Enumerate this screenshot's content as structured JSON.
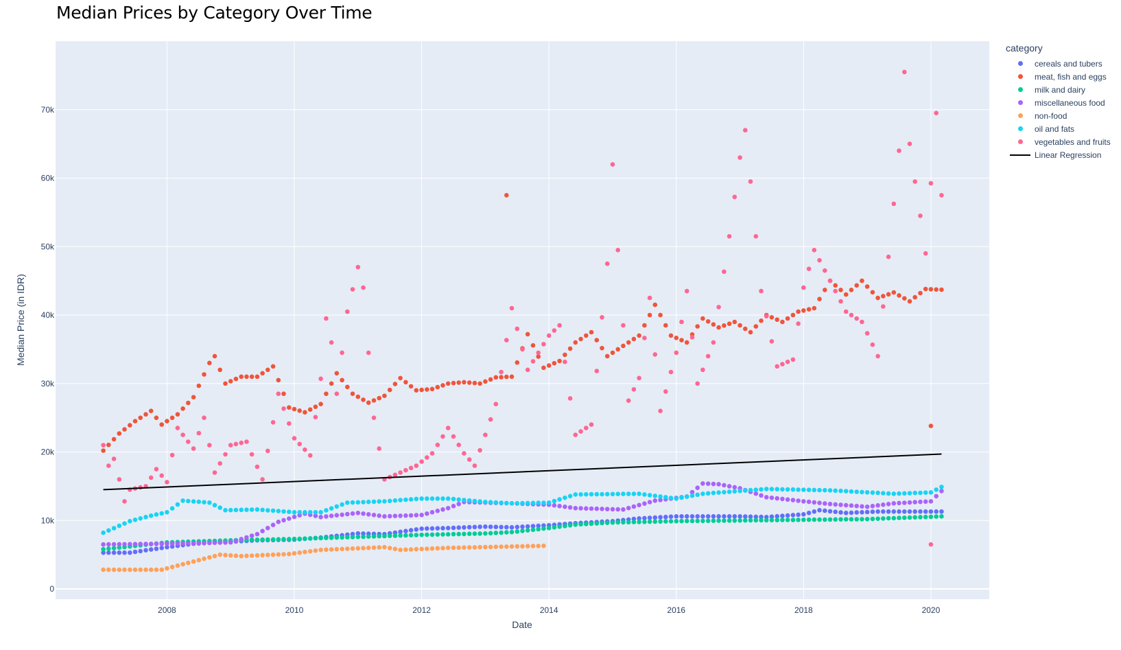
{
  "chart_data": {
    "type": "scatter",
    "title": "Median Prices by Category Over Time",
    "xlabel": "Date",
    "ylabel": "Median Price (in IDR)",
    "legend_title": "category",
    "legend_position": "right",
    "grid": true,
    "xlim": [
      "2006-04-01",
      "2020-12-01"
    ],
    "ylim": [
      -1500,
      80000
    ],
    "x_ticks": [
      {
        "value": "2008-01-01",
        "label": "2008"
      },
      {
        "value": "2010-01-01",
        "label": "2010"
      },
      {
        "value": "2012-01-01",
        "label": "2012"
      },
      {
        "value": "2014-01-01",
        "label": "2014"
      },
      {
        "value": "2016-01-01",
        "label": "2016"
      },
      {
        "value": "2018-01-01",
        "label": "2018"
      },
      {
        "value": "2020-01-01",
        "label": "2020"
      }
    ],
    "y_ticks": [
      {
        "value": 0,
        "label": "0"
      },
      {
        "value": 10000,
        "label": "10k"
      },
      {
        "value": 20000,
        "label": "20k"
      },
      {
        "value": 30000,
        "label": "30k"
      },
      {
        "value": 40000,
        "label": "40k"
      },
      {
        "value": 50000,
        "label": "50k"
      },
      {
        "value": 60000,
        "label": "60k"
      },
      {
        "value": 70000,
        "label": "70k"
      }
    ],
    "series": [
      {
        "name": "cereals and tubers",
        "color": "#636efa",
        "start": "2007-01",
        "end": "2020-03",
        "knots": [
          [
            "2007-01",
            5300
          ],
          [
            "2007-06",
            5300
          ],
          [
            "2008-01",
            6100
          ],
          [
            "2008-06",
            6600
          ],
          [
            "2009-01",
            6900
          ],
          [
            "2009-06",
            7100
          ],
          [
            "2010-01",
            7200
          ],
          [
            "2010-06",
            7500
          ],
          [
            "2011-01",
            8100
          ],
          [
            "2011-06",
            8000
          ],
          [
            "2012-01",
            8800
          ],
          [
            "2012-06",
            8900
          ],
          [
            "2013-01",
            9100
          ],
          [
            "2013-06",
            9000
          ],
          [
            "2014-01",
            9300
          ],
          [
            "2014-06",
            9600
          ],
          [
            "2015-01",
            9900
          ],
          [
            "2015-06",
            10300
          ],
          [
            "2016-01",
            10600
          ],
          [
            "2016-06",
            10600
          ],
          [
            "2017-01",
            10600
          ],
          [
            "2017-06",
            10500
          ],
          [
            "2018-01",
            10900
          ],
          [
            "2018-04",
            11500
          ],
          [
            "2018-09",
            11100
          ],
          [
            "2019-03",
            11300
          ],
          [
            "2020-03",
            11300
          ]
        ]
      },
      {
        "name": "meat, fish and eggs",
        "color": "#ef553b",
        "start": "2007-01",
        "end": "2020-03",
        "knots": [
          [
            "2007-01",
            20200
          ],
          [
            "2007-04",
            22700
          ],
          [
            "2007-07",
            24500
          ],
          [
            "2007-10",
            26000
          ],
          [
            "2007-12",
            24000
          ],
          [
            "2008-03",
            25500
          ],
          [
            "2008-06",
            28000
          ],
          [
            "2008-09",
            33000
          ],
          [
            "2008-10",
            34000
          ],
          [
            "2008-12",
            30000
          ],
          [
            "2009-03",
            31000
          ],
          [
            "2009-06",
            31000
          ],
          [
            "2009-09",
            32500
          ],
          [
            "2009-12",
            26500
          ],
          [
            "2010-03",
            25800
          ],
          [
            "2010-06",
            27000
          ],
          [
            "2010-09",
            31500
          ],
          [
            "2010-12",
            28500
          ],
          [
            "2011-03",
            27200
          ],
          [
            "2011-06",
            28200
          ],
          [
            "2011-09",
            30800
          ],
          [
            "2011-12",
            29000
          ],
          [
            "2012-03",
            29200
          ],
          [
            "2012-06",
            30000
          ],
          [
            "2012-09",
            30200
          ],
          [
            "2012-12",
            30000
          ],
          [
            "2013-03",
            30900
          ],
          [
            "2013-06",
            31000
          ],
          [
            "2013-09",
            37200
          ],
          [
            "2013-12",
            32300
          ],
          [
            "2014-03",
            33300
          ],
          [
            "2014-06",
            36000
          ],
          [
            "2014-09",
            37500
          ],
          [
            "2014-12",
            34000
          ],
          [
            "2015-03",
            35500
          ],
          [
            "2015-06",
            37000
          ],
          [
            "2015-09",
            41500
          ],
          [
            "2015-12",
            37000
          ],
          [
            "2016-03",
            36000
          ],
          [
            "2016-06",
            39500
          ],
          [
            "2016-09",
            38200
          ],
          [
            "2016-12",
            39000
          ],
          [
            "2017-03",
            37500
          ],
          [
            "2017-06",
            40000
          ],
          [
            "2017-09",
            39000
          ],
          [
            "2017-12",
            40500
          ],
          [
            "2018-03",
            41000
          ],
          [
            "2018-06",
            45000
          ],
          [
            "2018-09",
            43000
          ],
          [
            "2018-12",
            45000
          ],
          [
            "2019-03",
            42500
          ],
          [
            "2019-06",
            43300
          ],
          [
            "2019-09",
            42000
          ],
          [
            "2019-12",
            43800
          ],
          [
            "2020-03",
            43700
          ]
        ],
        "outliers": [
          [
            "2013-05",
            57500
          ],
          [
            "2020-01",
            23800
          ]
        ]
      },
      {
        "name": "milk and dairy",
        "color": "#00cc96",
        "start": "2007-01",
        "end": "2020-03",
        "knots": [
          [
            "2007-01",
            5800
          ],
          [
            "2007-06",
            6200
          ],
          [
            "2008-01",
            6800
          ],
          [
            "2009-01",
            7100
          ],
          [
            "2010-01",
            7300
          ],
          [
            "2011-01",
            7600
          ],
          [
            "2012-01",
            7900
          ],
          [
            "2013-01",
            8100
          ],
          [
            "2013-06",
            8300
          ],
          [
            "2014-01",
            8900
          ],
          [
            "2014-06",
            9400
          ],
          [
            "2015-01",
            9700
          ],
          [
            "2016-01",
            9900
          ],
          [
            "2017-01",
            10000
          ],
          [
            "2018-01",
            10100
          ],
          [
            "2019-01",
            10200
          ],
          [
            "2020-03",
            10600
          ]
        ]
      },
      {
        "name": "miscellaneous food",
        "color": "#ab63fa",
        "start": "2007-01",
        "end": "2020-03",
        "knots": [
          [
            "2007-01",
            6500
          ],
          [
            "2008-01",
            6600
          ],
          [
            "2009-01",
            6800
          ],
          [
            "2009-06",
            8000
          ],
          [
            "2009-10",
            9800
          ],
          [
            "2010-03",
            11000
          ],
          [
            "2010-06",
            10500
          ],
          [
            "2011-01",
            11100
          ],
          [
            "2011-06",
            10600
          ],
          [
            "2012-01",
            10800
          ],
          [
            "2012-06",
            11800
          ],
          [
            "2012-09",
            12700
          ],
          [
            "2013-06",
            12500
          ],
          [
            "2014-01",
            12300
          ],
          [
            "2014-06",
            11800
          ],
          [
            "2015-03",
            11600
          ],
          [
            "2015-09",
            12900
          ],
          [
            "2016-03",
            13500
          ],
          [
            "2016-06",
            15400
          ],
          [
            "2016-09",
            15300
          ],
          [
            "2017-01",
            14700
          ],
          [
            "2017-06",
            13400
          ],
          [
            "2018-01",
            12800
          ],
          [
            "2018-06",
            12400
          ],
          [
            "2019-01",
            12000
          ],
          [
            "2019-06",
            12500
          ],
          [
            "2020-01",
            12800
          ],
          [
            "2020-03",
            14300
          ]
        ]
      },
      {
        "name": "non-food",
        "color": "#ffa15a",
        "start": "2007-01",
        "end": "2013-12",
        "knots": [
          [
            "2007-01",
            2800
          ],
          [
            "2007-12",
            2800
          ],
          [
            "2008-06",
            4000
          ],
          [
            "2008-11",
            5000
          ],
          [
            "2009-03",
            4800
          ],
          [
            "2009-12",
            5100
          ],
          [
            "2010-06",
            5700
          ],
          [
            "2011-06",
            6100
          ],
          [
            "2011-09",
            5700
          ],
          [
            "2012-06",
            6000
          ],
          [
            "2013-06",
            6200
          ],
          [
            "2013-12",
            6300
          ]
        ]
      },
      {
        "name": "oil and fats",
        "color": "#19d3f3",
        "start": "2007-01",
        "end": "2020-03",
        "knots": [
          [
            "2007-01",
            8200
          ],
          [
            "2007-06",
            9900
          ],
          [
            "2007-10",
            10700
          ],
          [
            "2008-01",
            11200
          ],
          [
            "2008-04",
            12900
          ],
          [
            "2008-09",
            12600
          ],
          [
            "2008-12",
            11500
          ],
          [
            "2009-06",
            11600
          ],
          [
            "2010-01",
            11200
          ],
          [
            "2010-06",
            11200
          ],
          [
            "2010-11",
            12600
          ],
          [
            "2011-06",
            12800
          ],
          [
            "2012-01",
            13200
          ],
          [
            "2012-06",
            13200
          ],
          [
            "2013-01",
            12700
          ],
          [
            "2013-06",
            12500
          ],
          [
            "2014-01",
            12600
          ],
          [
            "2014-06",
            13800
          ],
          [
            "2015-06",
            13900
          ],
          [
            "2016-01",
            13200
          ],
          [
            "2016-06",
            13900
          ],
          [
            "2017-06",
            14600
          ],
          [
            "2018-06",
            14400
          ],
          [
            "2019-06",
            13900
          ],
          [
            "2020-01",
            14100
          ],
          [
            "2020-03",
            14900
          ]
        ]
      },
      {
        "name": "vegetables and fruits",
        "color": "#ff6692",
        "start": "2007-01",
        "end": "2020-03",
        "knots": [
          [
            "2007-01",
            21000
          ],
          [
            "2007-02",
            18000
          ],
          [
            "2007-03",
            19000
          ],
          [
            "2007-04",
            16000
          ],
          [
            "2007-05",
            12800
          ],
          [
            "2007-06",
            14500
          ],
          [
            "2007-09",
            15000
          ],
          [
            "2007-11",
            17500
          ],
          [
            "2008-01",
            15600
          ],
          [
            "2008-03",
            23500
          ],
          [
            "2008-06",
            20500
          ],
          [
            "2008-08",
            25000
          ],
          [
            "2008-10",
            17000
          ],
          [
            "2009-01",
            21000
          ],
          [
            "2009-04",
            21500
          ],
          [
            "2009-07",
            16000
          ],
          [
            "2009-10",
            28500
          ],
          [
            "2010-01",
            22000
          ],
          [
            "2010-04",
            19500
          ],
          [
            "2010-06",
            30700
          ],
          [
            "2010-07",
            39500
          ],
          [
            "2010-08",
            36000
          ],
          [
            "2010-09",
            28500
          ],
          [
            "2010-11",
            40500
          ],
          [
            "2011-01",
            47000
          ],
          [
            "2011-02",
            44000
          ],
          [
            "2011-04",
            25000
          ],
          [
            "2011-06",
            16000
          ],
          [
            "2011-09",
            17000
          ],
          [
            "2011-12",
            18000
          ],
          [
            "2012-03",
            19800
          ],
          [
            "2012-06",
            23500
          ],
          [
            "2012-09",
            19800
          ],
          [
            "2012-11",
            18000
          ],
          [
            "2013-03",
            27000
          ],
          [
            "2013-06",
            41000
          ],
          [
            "2013-09",
            32000
          ],
          [
            "2014-01",
            37000
          ],
          [
            "2014-03",
            38500
          ],
          [
            "2014-06",
            22500
          ],
          [
            "2014-09",
            24000
          ],
          [
            "2014-12",
            47500
          ],
          [
            "2015-01",
            62000
          ],
          [
            "2015-02",
            49500
          ],
          [
            "2015-04",
            27500
          ],
          [
            "2015-06",
            30800
          ],
          [
            "2015-08",
            42500
          ],
          [
            "2015-10",
            26000
          ],
          [
            "2016-01",
            34500
          ],
          [
            "2016-03",
            43500
          ],
          [
            "2016-05",
            30000
          ],
          [
            "2016-08",
            36000
          ],
          [
            "2016-11",
            51500
          ],
          [
            "2017-01",
            63000
          ],
          [
            "2017-02",
            67000
          ],
          [
            "2017-03",
            59500
          ],
          [
            "2017-05",
            43500
          ],
          [
            "2017-08",
            32500
          ],
          [
            "2017-11",
            33500
          ],
          [
            "2018-01",
            44000
          ],
          [
            "2018-03",
            49500
          ],
          [
            "2018-06",
            45000
          ],
          [
            "2018-09",
            40500
          ],
          [
            "2018-12",
            39000
          ],
          [
            "2019-03",
            34000
          ],
          [
            "2019-05",
            48500
          ],
          [
            "2019-07",
            64000
          ],
          [
            "2019-08",
            75500
          ],
          [
            "2019-09",
            65000
          ],
          [
            "2019-10",
            59500
          ],
          [
            "2019-11",
            54500
          ],
          [
            "2019-12",
            49000
          ],
          [
            "2020-02",
            69500
          ],
          [
            "2020-03",
            57500
          ]
        ],
        "outliers": [
          [
            "2020-01",
            6500
          ]
        ]
      },
      {
        "name": "Linear Regression",
        "color": "#000000",
        "mode": "line",
        "x": [
          "2007-01",
          "2020-03"
        ],
        "y": [
          14500,
          19700
        ]
      }
    ]
  }
}
